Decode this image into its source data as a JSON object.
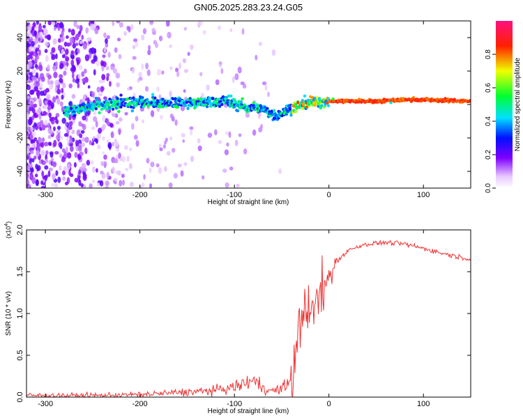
{
  "title": "GN05.2025.283.23.24.G05",
  "chart_data": [
    {
      "type": "heatmap",
      "xlabel": "Height of straight line (km)",
      "ylabel": "Frequency (Hz)",
      "xlim": [
        -320,
        150
      ],
      "ylim": [
        -50,
        50
      ],
      "xticks": [
        "-300",
        "-200",
        "-100",
        "0",
        "100"
      ],
      "yticks": [
        "-40",
        "-20",
        "0",
        "20",
        "40"
      ],
      "colorbar": {
        "label": "Normalized spectral amplitude",
        "range": [
          0,
          1
        ],
        "ticks": [
          "0.0",
          "0.2",
          "0.4",
          "0.6",
          "0.8"
        ],
        "colormap": "rainbow (white-violet-blue-cyan-green-yellow-red-magenta)"
      },
      "ridge_frequency": [
        {
          "x": -260,
          "y": -2
        },
        {
          "x": -220,
          "y": 1
        },
        {
          "x": -180,
          "y": 1
        },
        {
          "x": -140,
          "y": 1
        },
        {
          "x": -110,
          "y": 2
        },
        {
          "x": -90,
          "y": -1
        },
        {
          "x": -70,
          "y": -3
        },
        {
          "x": -55,
          "y": -7
        },
        {
          "x": -40,
          "y": -2
        },
        {
          "x": -20,
          "y": 1
        },
        {
          "x": 0,
          "y": 2
        },
        {
          "x": 50,
          "y": 2
        },
        {
          "x": 90,
          "y": 3
        },
        {
          "x": 150,
          "y": 2
        }
      ],
      "grid": false
    },
    {
      "type": "line",
      "xlabel": "Height of straight line (km)",
      "ylabel": "SNR (10 * v/v)",
      "y_multiplier": "(x10^4)",
      "xlim": [
        -320,
        150
      ],
      "ylim": [
        0,
        2.0
      ],
      "xticks": [
        "-300",
        "-200",
        "-100",
        "0",
        "100"
      ],
      "yticks": [
        "0.0",
        "0.5",
        "1.0",
        "1.5",
        "2.0"
      ],
      "series": [
        {
          "color": "#ee3333",
          "x": [
            -320,
            -250,
            -200,
            -150,
            -120,
            -100,
            -80,
            -70,
            -60,
            -50,
            -40,
            -35,
            -30,
            -25,
            -20,
            -15,
            -10,
            -5,
            0,
            10,
            20,
            30,
            40,
            60,
            80,
            100,
            120,
            150
          ],
          "y": [
            0.02,
            0.02,
            0.03,
            0.06,
            0.08,
            0.12,
            0.2,
            0.12,
            0.07,
            0.1,
            0.2,
            0.5,
            0.9,
            1.2,
            0.9,
            1.1,
            1.2,
            1.3,
            1.45,
            1.65,
            1.75,
            1.8,
            1.83,
            1.85,
            1.83,
            1.78,
            1.72,
            1.65
          ]
        }
      ],
      "grid": false
    }
  ]
}
